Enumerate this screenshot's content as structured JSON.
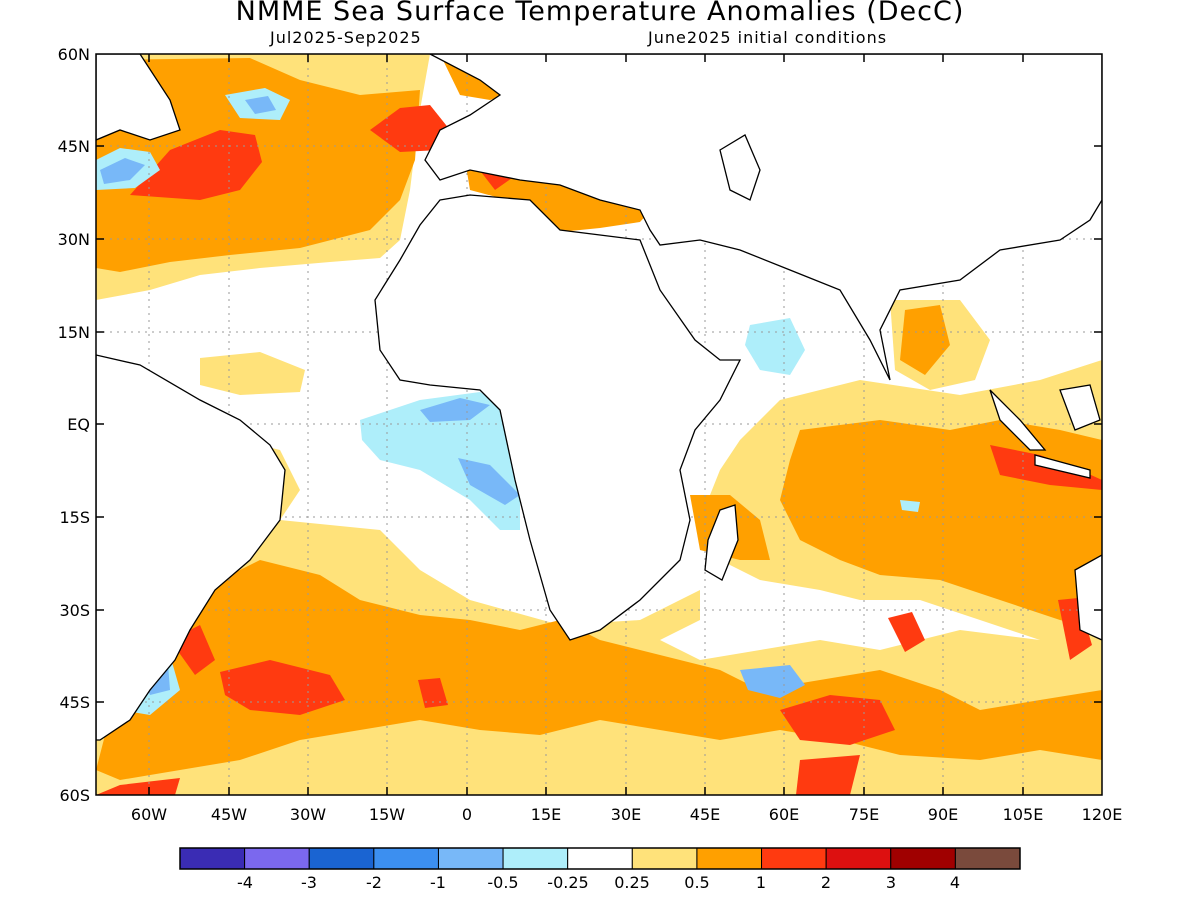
{
  "header": {
    "title": "NMME Sea Surface Temperature Anomalies (DecC)",
    "subtitle_left": "Jul2025-Sep2025",
    "subtitle_right": "June2025 initial conditions"
  },
  "map": {
    "lat_labels": [
      "60N",
      "45N",
      "30N",
      "15N",
      "EQ",
      "15S",
      "30S",
      "45S",
      "60S"
    ],
    "lon_labels": [
      "60W",
      "45W",
      "30W",
      "15W",
      "0",
      "15E",
      "30E",
      "45E",
      "60E",
      "75E",
      "90E",
      "105E",
      "120E"
    ]
  },
  "legend": {
    "colors": [
      "#3a2cb4",
      "#7b68ee",
      "#1a64d2",
      "#3c8ff0",
      "#78b8f8",
      "#aeeefa",
      "#ffffff",
      "#ffe27a",
      "#ffa000",
      "#ff3a10",
      "#dd1010",
      "#a00000",
      "#7a4a3c"
    ],
    "labels": [
      "-4",
      "-3",
      "-2",
      "-1",
      "-0.5",
      "-0.25",
      "0.25",
      "0.5",
      "1",
      "2",
      "3",
      "4"
    ]
  }
}
